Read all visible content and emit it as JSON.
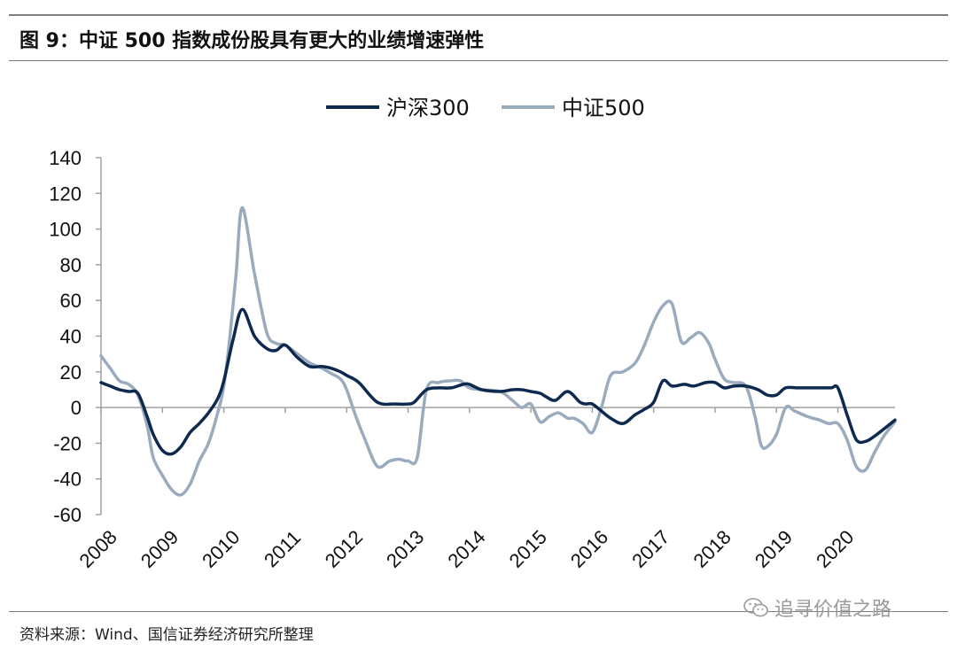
{
  "title": "图  9：中证 500 指数成份股具有更大的业绩增速弹性",
  "source": "资料来源：Wind、国信证券经济研究所整理",
  "watermark": {
    "text": "追寻价值之路",
    "icon": "wechat-icon"
  },
  "colors": {
    "hs300": "#0d2a4e",
    "zz500": "#9aabbd",
    "axis": "#a0a0a0"
  },
  "chart_data": {
    "type": "line",
    "title": "",
    "xlabel": "",
    "ylabel": "",
    "ylim": [
      -60,
      140
    ],
    "yticks": [
      140,
      120,
      100,
      80,
      60,
      40,
      20,
      0,
      -20,
      -40,
      -60
    ],
    "xlim": [
      2008,
      2020.93
    ],
    "xticks": [
      "2008",
      "2009",
      "2010",
      "2011",
      "2012",
      "2013",
      "2014",
      "2015",
      "2016",
      "2017",
      "2018",
      "2019",
      "2020"
    ],
    "legend_position": "top-center",
    "grid": false,
    "series": [
      {
        "name": "沪深300",
        "x": [
          2008.0,
          2008.15,
          2008.3,
          2008.45,
          2008.6,
          2008.75,
          2008.85,
          2009.0,
          2009.15,
          2009.3,
          2009.45,
          2009.6,
          2009.75,
          2009.9,
          2010.0,
          2010.15,
          2010.3,
          2010.5,
          2010.7,
          2010.85,
          2011.0,
          2011.2,
          2011.4,
          2011.6,
          2011.75,
          2011.9,
          2012.0,
          2012.2,
          2012.5,
          2012.8,
          2013.0,
          2013.1,
          2013.3,
          2013.5,
          2013.7,
          2013.9,
          2014.0,
          2014.2,
          2014.5,
          2014.7,
          2014.85,
          2015.0,
          2015.15,
          2015.25,
          2015.4,
          2015.6,
          2015.8,
          2015.9,
          2016.0,
          2016.15,
          2016.3,
          2016.5,
          2016.7,
          2016.85,
          2017.0,
          2017.15,
          2017.3,
          2017.5,
          2017.65,
          2017.85,
          2018.0,
          2018.15,
          2018.3,
          2018.5,
          2018.7,
          2018.85,
          2019.0,
          2019.15,
          2019.35,
          2019.55,
          2019.7,
          2019.8,
          2019.9,
          2020.0,
          2020.15,
          2020.3,
          2020.45,
          2020.6,
          2020.75,
          2020.93
        ],
        "values": [
          14,
          12,
          10,
          9,
          8,
          -5,
          -15,
          -24,
          -26,
          -22,
          -14,
          -9,
          -3,
          5,
          15,
          38,
          55,
          40,
          33,
          32,
          35,
          28,
          23,
          23,
          22,
          20,
          18,
          14,
          3,
          2,
          2,
          3,
          10,
          11,
          11,
          13,
          13,
          10,
          9,
          10,
          10,
          9,
          8,
          6,
          4,
          9,
          3,
          2,
          2,
          -2,
          -6,
          -9,
          -4,
          -1,
          3,
          15,
          12,
          13,
          12,
          14,
          14,
          11,
          12,
          12,
          10,
          7,
          7,
          11,
          11,
          11,
          11,
          11,
          11,
          11,
          -4,
          -18,
          -19,
          -16,
          -12,
          -7
        ]
      },
      {
        "name": "中证500",
        "x": [
          2008.0,
          2008.15,
          2008.3,
          2008.45,
          2008.6,
          2008.75,
          2008.85,
          2009.0,
          2009.15,
          2009.3,
          2009.45,
          2009.6,
          2009.75,
          2009.9,
          2010.0,
          2010.1,
          2010.2,
          2010.3,
          2010.5,
          2010.7,
          2010.85,
          2011.0,
          2011.2,
          2011.4,
          2011.6,
          2011.75,
          2011.9,
          2012.0,
          2012.15,
          2012.3,
          2012.5,
          2012.7,
          2012.85,
          2013.0,
          2013.15,
          2013.3,
          2013.5,
          2013.7,
          2013.85,
          2014.0,
          2014.2,
          2014.5,
          2014.7,
          2014.85,
          2015.0,
          2015.15,
          2015.3,
          2015.45,
          2015.6,
          2015.7,
          2015.85,
          2016.0,
          2016.15,
          2016.3,
          2016.5,
          2016.7,
          2016.85,
          2017.0,
          2017.15,
          2017.3,
          2017.45,
          2017.6,
          2017.75,
          2017.9,
          2018.0,
          2018.15,
          2018.3,
          2018.5,
          2018.65,
          2018.75,
          2018.85,
          2019.0,
          2019.15,
          2019.3,
          2019.5,
          2019.7,
          2019.85,
          2020.0,
          2020.15,
          2020.3,
          2020.45,
          2020.6,
          2020.75,
          2020.93
        ],
        "values": [
          29,
          22,
          15,
          13,
          7,
          -10,
          -28,
          -38,
          -46,
          -49,
          -43,
          -30,
          -20,
          -3,
          12,
          40,
          75,
          112,
          75,
          42,
          36,
          35,
          30,
          25,
          22,
          19,
          16,
          10,
          -5,
          -18,
          -33,
          -30,
          -29,
          -30,
          -28,
          10,
          14,
          15,
          15,
          11,
          10,
          9,
          4,
          0,
          2,
          -8,
          -5,
          -3,
          -6,
          -6,
          -9,
          -14,
          0,
          18,
          20,
          25,
          35,
          48,
          57,
          58,
          37,
          39,
          42,
          36,
          27,
          16,
          14,
          12,
          -5,
          -21,
          -22,
          -15,
          0,
          -2,
          -5,
          -7,
          -9,
          -9,
          -18,
          -33,
          -35,
          -25,
          -16,
          -8
        ]
      }
    ]
  }
}
